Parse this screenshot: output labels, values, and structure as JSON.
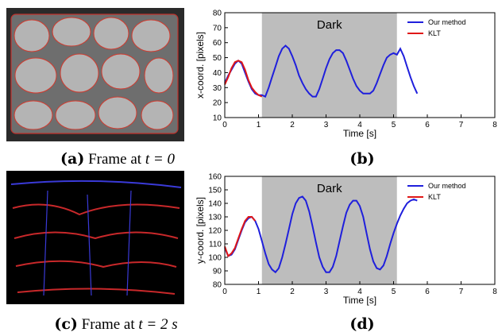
{
  "figure": {
    "captions": [
      {
        "label": "(a)",
        "text": "Frame at",
        "math": "t = 0"
      },
      {
        "label": "(b)"
      },
      {
        "label": "(c)",
        "text": "Frame at",
        "math": "t = 2 s"
      },
      {
        "label": "(d)"
      }
    ]
  },
  "chart_data": [
    {
      "type": "line",
      "xlabel": "Time [s]",
      "ylabel": "x-coord. [pixels]",
      "xlim": [
        0,
        8
      ],
      "xticks": [
        0,
        1,
        2,
        3,
        4,
        5,
        6,
        7,
        8
      ],
      "ylim": [
        10,
        80
      ],
      "yticks": [
        10,
        20,
        30,
        40,
        50,
        60,
        70,
        80
      ],
      "grid": false,
      "legend": "upper right",
      "shaded_region": {
        "label": "Dark",
        "x": [
          1.1,
          5.1
        ],
        "color": "#bdbdbd"
      },
      "series": [
        {
          "name": "Our method",
          "color": "#1f1fdc",
          "x": [
            0,
            0.1,
            0.2,
            0.3,
            0.4,
            0.5,
            0.6,
            0.7,
            0.8,
            0.9,
            1.0,
            1.1,
            1.2,
            1.3,
            1.4,
            1.5,
            1.6,
            1.7,
            1.8,
            1.9,
            2.0,
            2.1,
            2.2,
            2.3,
            2.4,
            2.5,
            2.6,
            2.7,
            2.8,
            2.9,
            3.0,
            3.1,
            3.2,
            3.3,
            3.4,
            3.5,
            3.6,
            3.7,
            3.8,
            3.9,
            4.0,
            4.1,
            4.2,
            4.3,
            4.4,
            4.5,
            4.6,
            4.7,
            4.8,
            4.9,
            5.0,
            5.1,
            5.2,
            5.3,
            5.4,
            5.5,
            5.6,
            5.7
          ],
          "values": [
            33,
            38,
            42,
            46,
            48,
            46,
            40,
            34,
            29,
            26,
            25,
            25,
            24,
            30,
            37,
            44,
            51,
            56,
            58,
            56,
            51,
            45,
            38,
            33,
            29,
            26,
            24,
            24,
            29,
            36,
            43,
            49,
            53,
            55,
            55,
            53,
            48,
            42,
            36,
            31,
            28,
            26,
            26,
            26,
            28,
            33,
            39,
            45,
            50,
            52,
            53,
            52,
            56,
            51,
            44,
            37,
            31,
            26
          ]
        },
        {
          "name": "KLT",
          "color": "#e01818",
          "x": [
            0,
            0.1,
            0.2,
            0.3,
            0.4,
            0.5,
            0.6,
            0.7,
            0.8,
            0.9,
            1.0,
            1.1
          ],
          "values": [
            32,
            37,
            43,
            47,
            48,
            47,
            42,
            35,
            30,
            27,
            25,
            24
          ]
        }
      ]
    },
    {
      "type": "line",
      "xlabel": "Time [s]",
      "ylabel": "y-coord. [pixels]",
      "xlim": [
        0,
        8
      ],
      "xticks": [
        0,
        1,
        2,
        3,
        4,
        5,
        6,
        7,
        8
      ],
      "ylim": [
        80,
        160
      ],
      "yticks": [
        80,
        90,
        100,
        110,
        120,
        130,
        140,
        150,
        160
      ],
      "grid": false,
      "legend": "upper right",
      "shaded_region": {
        "label": "Dark",
        "x": [
          1.1,
          5.1
        ],
        "color": "#bdbdbd"
      },
      "series": [
        {
          "name": "Our method",
          "color": "#1f1fdc",
          "x": [
            0,
            0.1,
            0.2,
            0.3,
            0.4,
            0.5,
            0.6,
            0.7,
            0.8,
            0.9,
            1.0,
            1.1,
            1.2,
            1.3,
            1.4,
            1.5,
            1.6,
            1.7,
            1.8,
            1.9,
            2.0,
            2.1,
            2.2,
            2.3,
            2.4,
            2.5,
            2.6,
            2.7,
            2.8,
            2.9,
            3.0,
            3.1,
            3.2,
            3.3,
            3.4,
            3.5,
            3.6,
            3.7,
            3.8,
            3.9,
            4.0,
            4.1,
            4.2,
            4.3,
            4.4,
            4.5,
            4.6,
            4.7,
            4.8,
            4.9,
            5.0,
            5.1,
            5.2,
            5.3,
            5.4,
            5.5,
            5.6,
            5.7
          ],
          "values": [
            107,
            101,
            102,
            106,
            113,
            120,
            126,
            129,
            130,
            127,
            121,
            112,
            103,
            95,
            91,
            89,
            92,
            100,
            110,
            121,
            132,
            140,
            144,
            145,
            142,
            134,
            123,
            111,
            100,
            93,
            89,
            89,
            93,
            101,
            112,
            123,
            133,
            139,
            142,
            142,
            138,
            130,
            118,
            106,
            97,
            92,
            91,
            94,
            101,
            110,
            118,
            125,
            131,
            136,
            140,
            142,
            143,
            142
          ]
        },
        {
          "name": "KLT",
          "color": "#e01818",
          "x": [
            0,
            0.1,
            0.2,
            0.3,
            0.4,
            0.5,
            0.6,
            0.7,
            0.8,
            0.9
          ],
          "values": [
            108,
            101,
            103,
            107,
            114,
            121,
            127,
            130,
            130,
            127
          ]
        }
      ]
    }
  ]
}
